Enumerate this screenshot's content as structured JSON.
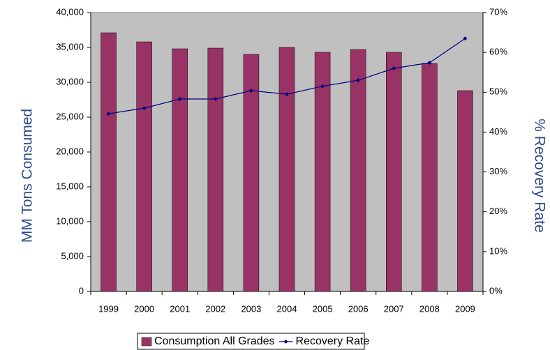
{
  "chart_data": {
    "type": "bar_line",
    "categories": [
      "1999",
      "2000",
      "2001",
      "2002",
      "2003",
      "2004",
      "2005",
      "2006",
      "2007",
      "2008",
      "2009"
    ],
    "y_label": "MM Tons Consumed",
    "y2_label": "% Recovery Rate",
    "series": [
      {
        "name": "Consumption All Grades",
        "type": "bar",
        "color": "#993366",
        "values": [
          37100,
          35800,
          34800,
          34900,
          34000,
          35000,
          34300,
          34700,
          34300,
          32700,
          28800
        ]
      },
      {
        "name": "Recovery Rate",
        "type": "line",
        "axis": "y2",
        "color": "#000080",
        "values": [
          44.6,
          46.0,
          48.3,
          48.3,
          50.4,
          49.5,
          51.5,
          53.0,
          56.0,
          57.4,
          63.5
        ]
      }
    ],
    "ylim": [
      0,
      40000
    ],
    "yticks": [
      0,
      {
        "value": 5000,
        "label": "5,000"
      },
      {
        "value": 10000,
        "label": "10,000"
      },
      {
        "value": 15000,
        "label": "15,000"
      },
      {
        "value": 20000,
        "label": "20,000"
      },
      {
        "value": 25000,
        "label": "25,000"
      },
      {
        "value": 30000,
        "label": "30,000"
      },
      {
        "value": 35000,
        "label": "35,000"
      },
      {
        "value": 40000,
        "label": "40,000"
      }
    ],
    "y2lim": [
      0,
      70
    ],
    "y2ticks": [
      {
        "value": 0,
        "label": "0%"
      },
      {
        "value": 10,
        "label": "10%"
      },
      {
        "value": 20,
        "label": "20%"
      },
      {
        "value": 30,
        "label": "30%"
      },
      {
        "value": 40,
        "label": "40%"
      },
      {
        "value": 50,
        "label": "50%"
      },
      {
        "value": 60,
        "label": "60%"
      },
      {
        "value": 70,
        "label": "70%"
      }
    ],
    "plot_background": "#c0c0c0",
    "legend": "bottom"
  }
}
